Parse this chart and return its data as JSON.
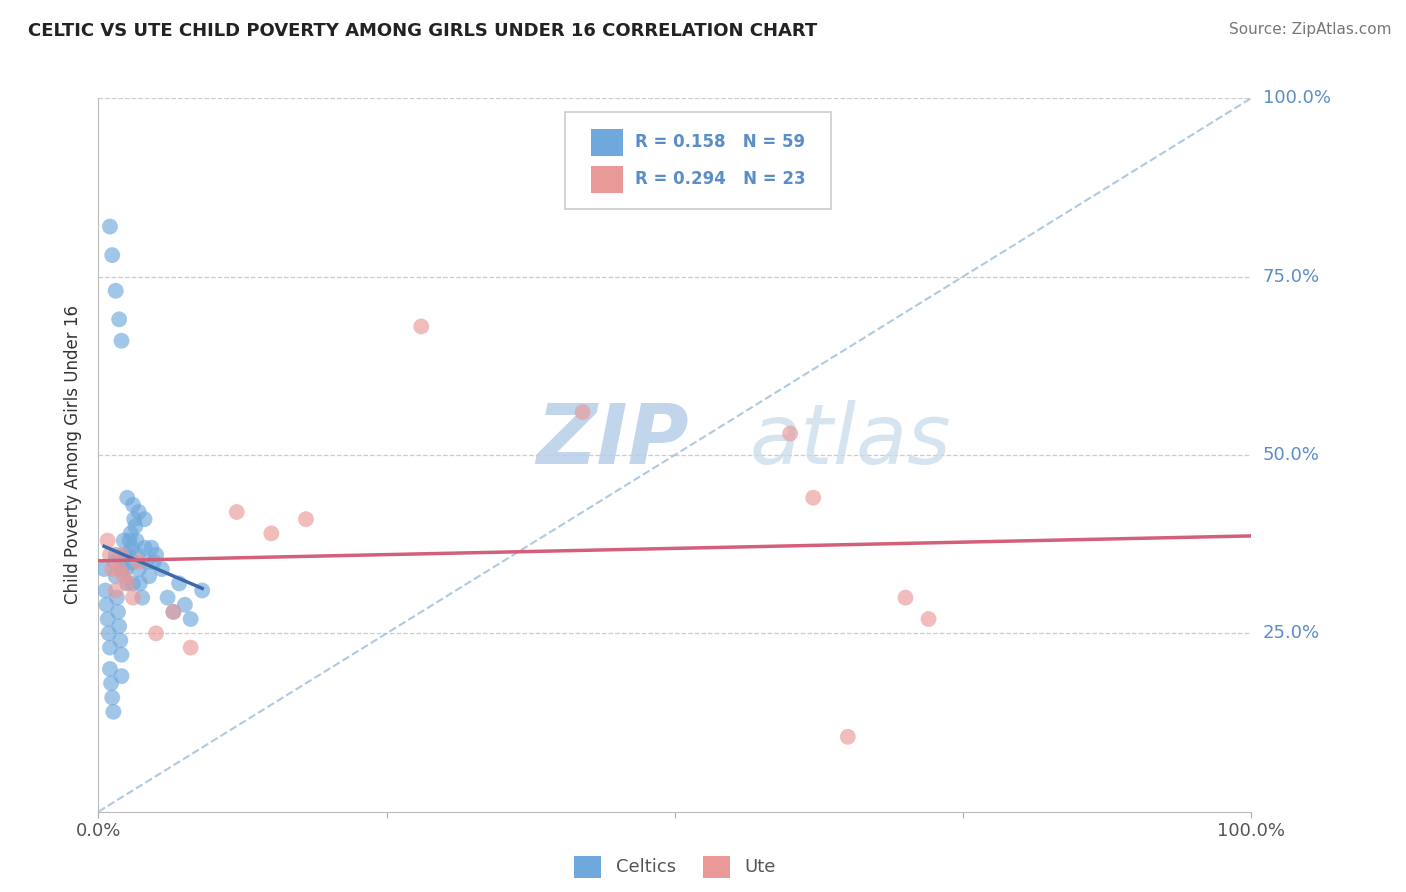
{
  "title": "CELTIC VS UTE CHILD POVERTY AMONG GIRLS UNDER 16 CORRELATION CHART",
  "source": "Source: ZipAtlas.com",
  "ylabel": "Child Poverty Among Girls Under 16",
  "xlim": [
    0,
    1
  ],
  "ylim": [
    0,
    1
  ],
  "legend_r_celtic": "R = 0.158",
  "legend_n_celtic": "N = 59",
  "legend_r_ute": "R = 0.294",
  "legend_n_ute": "N = 23",
  "celtic_color": "#6fa8dc",
  "ute_color": "#ea9999",
  "celtic_line_color": "#3d6baa",
  "ute_line_color": "#d45f7a",
  "diag_color": "#a8c4e0",
  "watermark_color": "#cfdeed",
  "ytick_color": "#5b8dc8",
  "celtic_x": [
    0.005,
    0.006,
    0.007,
    0.008,
    0.009,
    0.01,
    0.01,
    0.011,
    0.012,
    0.013,
    0.014,
    0.015,
    0.015,
    0.016,
    0.017,
    0.018,
    0.019,
    0.02,
    0.02,
    0.021,
    0.022,
    0.023,
    0.024,
    0.025,
    0.026,
    0.027,
    0.028,
    0.029,
    0.03,
    0.03,
    0.031,
    0.032,
    0.033,
    0.034,
    0.035,
    0.036,
    0.038,
    0.04,
    0.042,
    0.044,
    0.046,
    0.048,
    0.05,
    0.055,
    0.06,
    0.065,
    0.07,
    0.075,
    0.08,
    0.09,
    0.01,
    0.012,
    0.015,
    0.018,
    0.02,
    0.025,
    0.03,
    0.035,
    0.04
  ],
  "celtic_y": [
    0.34,
    0.31,
    0.29,
    0.27,
    0.25,
    0.23,
    0.2,
    0.18,
    0.16,
    0.14,
    0.35,
    0.36,
    0.33,
    0.3,
    0.28,
    0.26,
    0.24,
    0.22,
    0.19,
    0.34,
    0.38,
    0.36,
    0.34,
    0.32,
    0.36,
    0.38,
    0.39,
    0.37,
    0.35,
    0.32,
    0.41,
    0.4,
    0.38,
    0.36,
    0.34,
    0.32,
    0.3,
    0.37,
    0.35,
    0.33,
    0.37,
    0.35,
    0.36,
    0.34,
    0.3,
    0.28,
    0.32,
    0.29,
    0.27,
    0.31,
    0.82,
    0.78,
    0.73,
    0.69,
    0.66,
    0.44,
    0.43,
    0.42,
    0.41
  ],
  "ute_x": [
    0.008,
    0.01,
    0.012,
    0.015,
    0.018,
    0.02,
    0.022,
    0.025,
    0.03,
    0.035,
    0.05,
    0.065,
    0.08,
    0.12,
    0.15,
    0.18,
    0.28,
    0.42,
    0.6,
    0.62,
    0.65,
    0.7,
    0.72
  ],
  "ute_y": [
    0.38,
    0.36,
    0.34,
    0.31,
    0.34,
    0.36,
    0.33,
    0.32,
    0.3,
    0.35,
    0.25,
    0.28,
    0.23,
    0.42,
    0.39,
    0.41,
    0.68,
    0.56,
    0.53,
    0.44,
    0.105,
    0.3,
    0.27
  ]
}
